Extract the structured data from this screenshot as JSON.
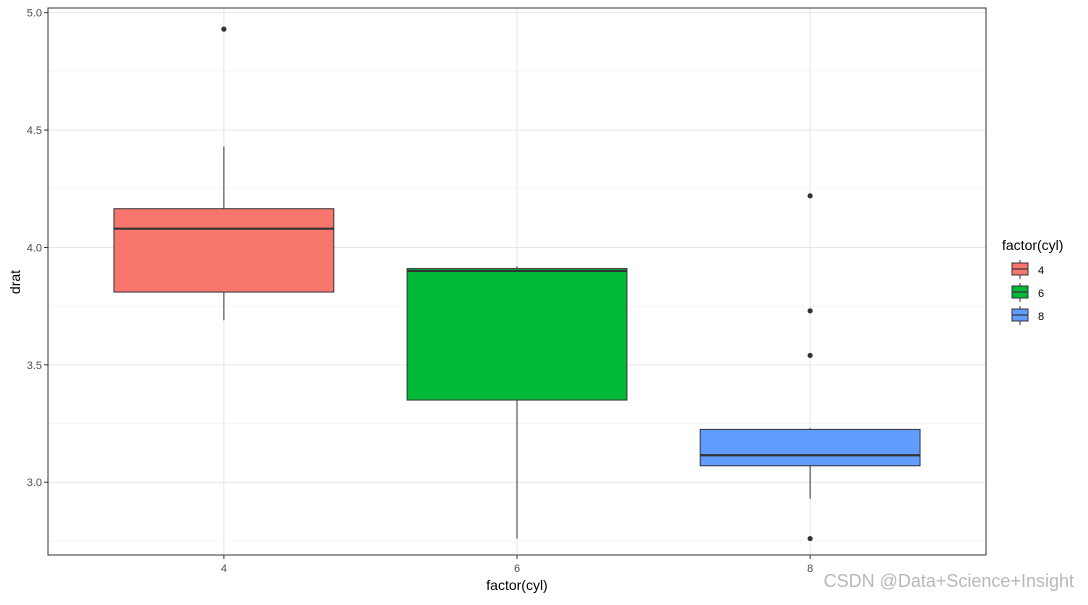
{
  "chart_data": {
    "type": "boxplot",
    "xlabel": "factor(cyl)",
    "ylabel": "drat",
    "ylim": [
      2.69,
      5.02
    ],
    "y_ticks": [
      "3.0",
      "3.5",
      "4.0",
      "4.5",
      "5.0"
    ],
    "grid": true,
    "legend": {
      "title": "factor(cyl)",
      "position": "right",
      "entries": [
        "4",
        "6",
        "8"
      ]
    },
    "categories": [
      "4",
      "6",
      "8"
    ],
    "boxes": [
      {
        "category": "4",
        "color": "#F8766D",
        "whisker_low": 3.69,
        "q1": 3.81,
        "median": 4.08,
        "q3": 4.165,
        "whisker_high": 4.43,
        "outliers": [
          4.93
        ]
      },
      {
        "category": "6",
        "color": "#00BA38",
        "whisker_low": 2.76,
        "q1": 3.35,
        "median": 3.9,
        "q3": 3.91,
        "whisker_high": 3.92,
        "outliers": []
      },
      {
        "category": "8",
        "color": "#619CFF",
        "whisker_low": 2.93,
        "q1": 3.07,
        "median": 3.115,
        "q3": 3.225,
        "whisker_high": 3.23,
        "outliers": [
          4.22,
          3.73,
          3.54,
          2.76
        ]
      }
    ]
  },
  "watermark": "CSDN @Data+Science+Insight"
}
